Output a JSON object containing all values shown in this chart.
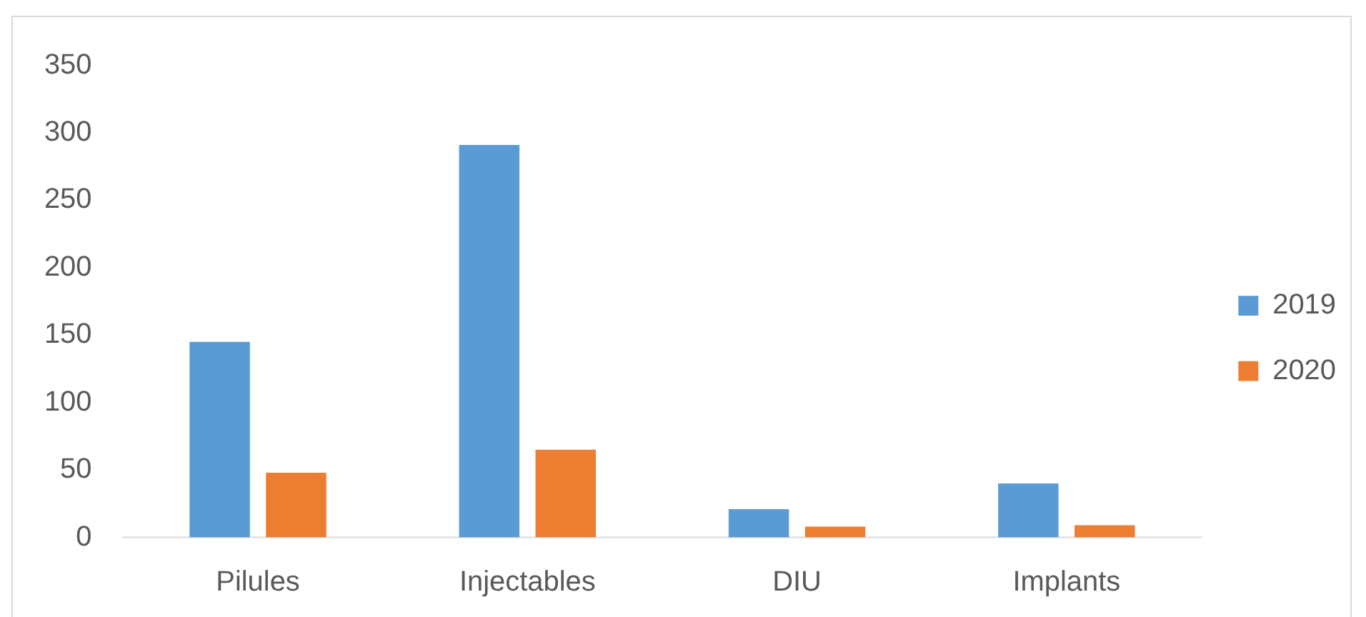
{
  "chart_data": {
    "type": "bar",
    "categories": [
      "Pilules",
      "Injectables",
      "DIU",
      "Implants"
    ],
    "series": [
      {
        "name": "2019",
        "color": "#5b9bd5",
        "values": [
          145,
          291,
          21,
          40
        ]
      },
      {
        "name": "2020",
        "color": "#ed7d31",
        "values": [
          48,
          65,
          8,
          9
        ]
      }
    ],
    "ylim": [
      0,
      350
    ],
    "yticks": [
      0,
      50,
      100,
      150,
      200,
      250,
      300,
      350
    ],
    "grid": false,
    "legend": "right"
  }
}
